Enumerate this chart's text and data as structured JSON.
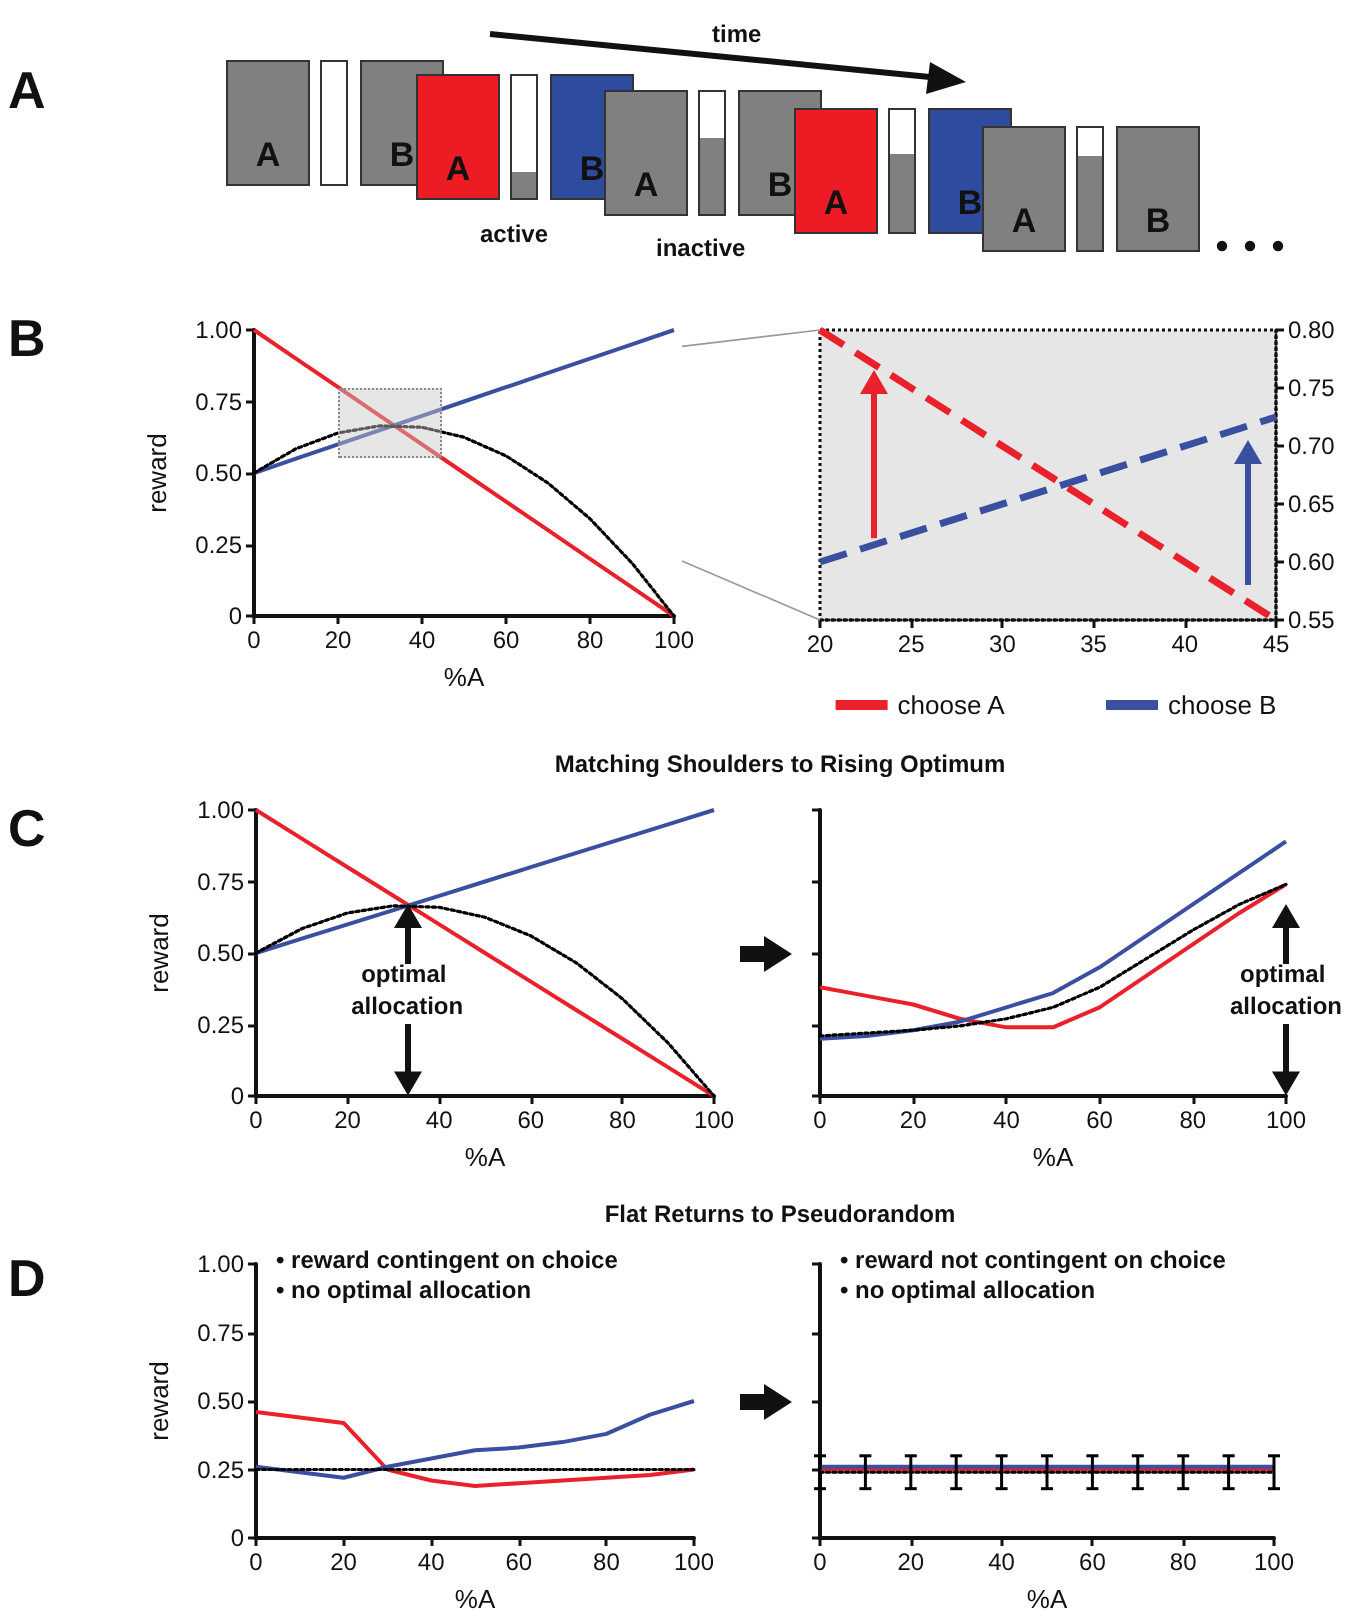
{
  "chart_data": [
    {
      "type": "other",
      "title": "A",
      "annotations": [
        "time",
        "active",
        "inactive",
        "A",
        "B",
        "A",
        "B",
        "A",
        "B",
        "A",
        "B",
        "A",
        "B"
      ]
    },
    {
      "type": "line",
      "title": "B",
      "xlabel": "%A",
      "ylabel": "reward",
      "xlim": [
        0,
        100
      ],
      "xticks": [
        0,
        20,
        40,
        60,
        80,
        100
      ],
      "ylim": [
        0,
        1
      ],
      "yticks": [
        {
          "value": 0,
          "label": "0"
        },
        {
          "value": 0.25,
          "label": "0.25"
        },
        {
          "value": 0.5,
          "label": "0.50"
        },
        {
          "value": 0.75,
          "label": "0.75"
        },
        {
          "value": 1,
          "label": "1.00"
        }
      ],
      "x": [
        0,
        10,
        20,
        30,
        40,
        50,
        60,
        70,
        80,
        90,
        100
      ],
      "series": [
        {
          "color": "#e8212a",
          "values": [
            1,
            0.9,
            0.8,
            0.7,
            0.6,
            0.5,
            0.4,
            0.3,
            0.2,
            0.1,
            0
          ]
        },
        {
          "color": "#3a4fa0",
          "values": [
            0.5,
            0.55,
            0.6,
            0.65,
            0.7,
            0.75,
            0.8,
            0.85,
            0.9,
            0.95,
            1
          ]
        },
        {
          "color": "#000000",
          "line_style": "dotted",
          "values": [
            0.5,
            0.585,
            0.64,
            0.665,
            0.66,
            0.625,
            0.56,
            0.465,
            0.34,
            0.185,
            0
          ]
        }
      ]
    },
    {
      "type": "line",
      "xlim": [
        20,
        45
      ],
      "xticks": [
        20,
        25,
        30,
        35,
        40,
        45
      ],
      "y2lim": [
        0.55,
        0.8
      ],
      "y2ticks": [
        {
          "value": 0.55,
          "label": "0.55"
        },
        {
          "value": 0.6,
          "label": "0.60"
        },
        {
          "value": 0.65,
          "label": "0.65"
        },
        {
          "value": 0.7,
          "label": "0.70"
        },
        {
          "value": 0.75,
          "label": "0.75"
        },
        {
          "value": 0.8,
          "label": "0.80"
        }
      ],
      "legend": "bottom",
      "line_style": "dashed",
      "x": [
        20,
        45
      ],
      "series": [
        {
          "name": "choose A",
          "color": "#e8212a",
          "axis": "y2",
          "values": [
            0.8,
            0.55
          ]
        },
        {
          "name": "choose B",
          "color": "#3a4fa0",
          "axis": "y2",
          "values": [
            0.6,
            0.725
          ]
        }
      ]
    },
    {
      "type": "line",
      "title": "C",
      "subtitle": "Matching Shoulders to Rising Optimum",
      "xlabel": "%A",
      "ylabel": "reward",
      "xlim": [
        0,
        100
      ],
      "xticks": [
        0,
        20,
        40,
        60,
        80,
        100
      ],
      "ylim": [
        0,
        1
      ],
      "yticks": [
        {
          "value": 0,
          "label": "0"
        },
        {
          "value": 0.25,
          "label": "0.25"
        },
        {
          "value": 0.5,
          "label": "0.50"
        },
        {
          "value": 0.75,
          "label": "0.75"
        },
        {
          "value": 1,
          "label": "1.00"
        }
      ],
      "annotations": [
        "optimal allocation"
      ],
      "x": [
        0,
        10,
        20,
        30,
        40,
        50,
        60,
        70,
        80,
        90,
        100
      ],
      "series": [
        {
          "color": "#e8212a",
          "values": [
            1,
            0.9,
            0.8,
            0.7,
            0.6,
            0.5,
            0.4,
            0.3,
            0.2,
            0.1,
            0
          ]
        },
        {
          "color": "#3a4fa0",
          "values": [
            0.5,
            0.55,
            0.6,
            0.65,
            0.7,
            0.75,
            0.8,
            0.85,
            0.9,
            0.95,
            1
          ]
        },
        {
          "color": "#000000",
          "line_style": "dotted",
          "values": [
            0.5,
            0.585,
            0.64,
            0.665,
            0.66,
            0.625,
            0.56,
            0.465,
            0.34,
            0.185,
            0
          ]
        }
      ]
    },
    {
      "type": "line",
      "xlabel": "%A",
      "xlim": [
        0,
        100
      ],
      "xticks": [
        0,
        20,
        40,
        60,
        80,
        100
      ],
      "ylim": [
        0,
        1
      ],
      "yticks": [
        0,
        0.25,
        0.5,
        0.75,
        1
      ],
      "tick_labels": "x",
      "annotations": [
        "optimal allocation"
      ],
      "x": [
        0,
        10,
        20,
        30,
        40,
        50,
        60,
        70,
        80,
        90,
        100
      ],
      "series": [
        {
          "color": "#e8212a",
          "values": [
            0.38,
            0.35,
            0.32,
            0.27,
            0.24,
            0.24,
            0.31,
            0.42,
            0.53,
            0.64,
            0.74
          ]
        },
        {
          "color": "#3a4fa0",
          "values": [
            0.2,
            0.21,
            0.23,
            0.26,
            0.31,
            0.36,
            0.45,
            0.56,
            0.67,
            0.78,
            0.89
          ]
        },
        {
          "color": "#000000",
          "line_style": "dotted",
          "values": [
            0.21,
            0.22,
            0.23,
            0.245,
            0.27,
            0.31,
            0.38,
            0.48,
            0.58,
            0.67,
            0.74
          ]
        }
      ]
    },
    {
      "type": "line",
      "title": "D",
      "subtitle": "Flat Returns to Pseudorandom",
      "xlabel": "%A",
      "ylabel": "reward",
      "xlim": [
        0,
        100
      ],
      "xticks": [
        0,
        20,
        40,
        60,
        80,
        100
      ],
      "ylim": [
        0,
        1
      ],
      "yticks": [
        {
          "value": 0,
          "label": "0"
        },
        {
          "value": 0.25,
          "label": "0.25"
        },
        {
          "value": 0.5,
          "label": "0.50"
        },
        {
          "value": 0.75,
          "label": "0.75"
        },
        {
          "value": 1,
          "label": "1.00"
        }
      ],
      "annotations": [
        "• reward contingent on choice",
        "• no optimal allocation"
      ],
      "x": [
        0,
        10,
        20,
        30,
        40,
        50,
        60,
        70,
        80,
        90,
        100
      ],
      "series": [
        {
          "color": "#e8212a",
          "values": [
            0.46,
            0.44,
            0.42,
            0.25,
            0.21,
            0.19,
            0.2,
            0.21,
            0.22,
            0.23,
            0.25
          ]
        },
        {
          "color": "#3a4fa0",
          "values": [
            0.26,
            0.24,
            0.22,
            0.26,
            0.29,
            0.32,
            0.33,
            0.35,
            0.38,
            0.45,
            0.5
          ]
        },
        {
          "color": "#000000",
          "line_style": "dotted",
          "values": [
            0.25,
            0.25,
            0.25,
            0.25,
            0.25,
            0.25,
            0.25,
            0.25,
            0.25,
            0.25,
            0.25
          ]
        }
      ]
    },
    {
      "type": "line",
      "xlabel": "%A",
      "xlim": [
        0,
        100
      ],
      "xticks": [
        0,
        20,
        40,
        60,
        80,
        100
      ],
      "ylim": [
        0,
        1
      ],
      "yticks": [
        0,
        0.25,
        0.5,
        0.75,
        1
      ],
      "tick_labels": "x",
      "annotations": [
        "• reward not contingent on choice",
        "• no optimal allocation"
      ],
      "x": [
        0,
        10,
        20,
        30,
        40,
        50,
        60,
        70,
        80,
        90,
        100
      ],
      "series": [
        {
          "color": "#e8212a",
          "values": [
            0.25,
            0.25,
            0.25,
            0.25,
            0.25,
            0.25,
            0.25,
            0.25,
            0.25,
            0.25,
            0.25
          ]
        },
        {
          "color": "#3a4fa0",
          "values": [
            0.26,
            0.26,
            0.26,
            0.26,
            0.26,
            0.26,
            0.26,
            0.26,
            0.26,
            0.26,
            0.26
          ]
        },
        {
          "color": "#000000",
          "line_style": "dotted",
          "values": [
            0.24,
            0.24,
            0.24,
            0.24,
            0.24,
            0.24,
            0.24,
            0.24,
            0.24,
            0.24,
            0.24
          ],
          "errors": [
            0.06,
            0.06,
            0.06,
            0.06,
            0.06,
            0.06,
            0.06,
            0.06,
            0.06,
            0.06,
            0.06
          ]
        }
      ]
    }
  ]
}
